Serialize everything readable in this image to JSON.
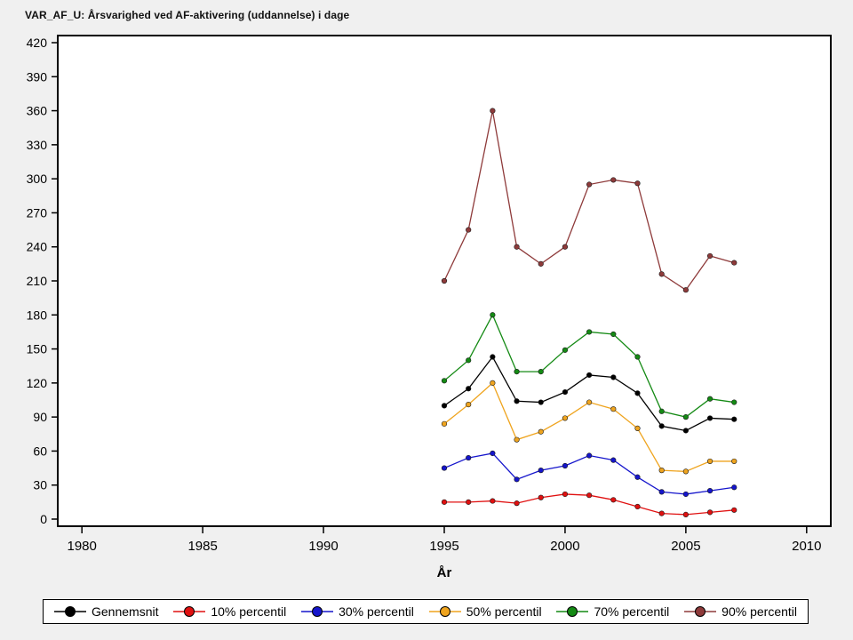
{
  "chart_data": {
    "type": "line",
    "title": "VAR_AF_U: Årsvarighed ved AF-aktivering (uddannelse) i dage",
    "xlabel": "År",
    "ylabel": "",
    "grid": false,
    "legend_position": "bottom",
    "xlim": [
      1979,
      2011
    ],
    "ylim": [
      0,
      420
    ],
    "x_ticks": [
      1980,
      1985,
      1990,
      1995,
      2000,
      2005,
      2010
    ],
    "y_ticks": [
      0,
      30,
      60,
      90,
      120,
      150,
      180,
      210,
      240,
      270,
      300,
      330,
      360,
      390,
      420
    ],
    "x": [
      1995,
      1996,
      1997,
      1998,
      1999,
      2000,
      2001,
      2002,
      2003,
      2004,
      2005,
      2006,
      2007
    ],
    "series": [
      {
        "name": "Gennemsnit",
        "color": "#000000",
        "values": [
          100,
          115,
          143,
          104,
          103,
          112,
          127,
          125,
          111,
          82,
          78,
          89,
          88
        ]
      },
      {
        "name": "10% percentil",
        "color": "#e01010",
        "values": [
          15,
          15,
          16,
          14,
          19,
          22,
          21,
          17,
          11,
          5,
          4,
          6,
          8
        ]
      },
      {
        "name": "30% percentil",
        "color": "#1515cc",
        "values": [
          45,
          54,
          58,
          35,
          43,
          47,
          56,
          52,
          37,
          24,
          22,
          25,
          28
        ]
      },
      {
        "name": "50% percentil",
        "color": "#efa41e",
        "values": [
          84,
          101,
          120,
          70,
          77,
          89,
          103,
          97,
          80,
          43,
          42,
          51,
          51
        ]
      },
      {
        "name": "70% percentil",
        "color": "#148a14",
        "values": [
          122,
          140,
          180,
          130,
          130,
          149,
          165,
          163,
          143,
          95,
          90,
          106,
          103
        ]
      },
      {
        "name": "90% percentil",
        "color": "#8e3a3a",
        "values": [
          210,
          255,
          360,
          240,
          225,
          240,
          295,
          299,
          296,
          216,
          202,
          232,
          226
        ]
      }
    ],
    "colors": {
      "background": "#f0f0f0",
      "plot_background": "#ffffff",
      "axis": "#000000"
    }
  }
}
